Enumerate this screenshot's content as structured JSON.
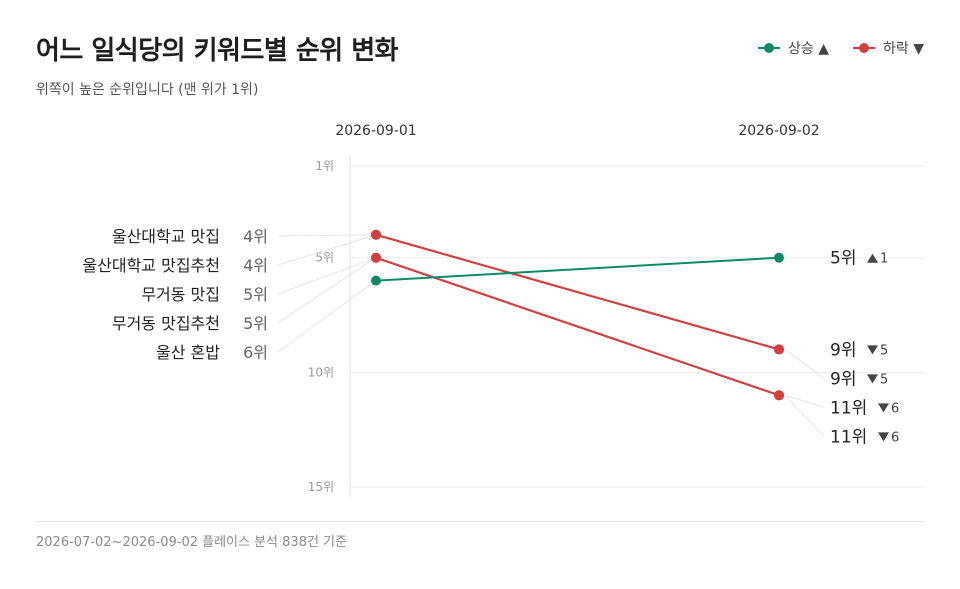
{
  "header": {
    "title": "어느 일식당의 키워드별 순위 변화",
    "subtitle": "위쪽이 높은 순위입니다 (맨 위가 1위)"
  },
  "legend": {
    "up": {
      "label": "상승 ▲",
      "color": "#0e8a6a"
    },
    "down": {
      "label": "하락 ▼",
      "color": "#d13f3f"
    }
  },
  "footer": {
    "note": "2026-07-02~2026-09-02 플레이스 분석 838건 기준"
  },
  "chart_data": {
    "type": "line",
    "chart_kind": "slope",
    "x": [
      "2026-09-01",
      "2026-09-02"
    ],
    "y_axis": {
      "reversed": true,
      "range": [
        1,
        15
      ],
      "ticks": [
        1,
        5,
        10,
        15
      ],
      "tick_suffix": "위"
    },
    "rank_suffix": "위",
    "grid": true,
    "series": [
      {
        "name": "울산대학교 맛집",
        "values": [
          4,
          9
        ],
        "change": 5,
        "direction": "down"
      },
      {
        "name": "울산대학교 맛집추천",
        "values": [
          4,
          9
        ],
        "change": 5,
        "direction": "down"
      },
      {
        "name": "무거동 맛집",
        "values": [
          5,
          11
        ],
        "change": 6,
        "direction": "down"
      },
      {
        "name": "무거동 맛집추천",
        "values": [
          5,
          11
        ],
        "change": 6,
        "direction": "down"
      },
      {
        "name": "울산 혼밥",
        "values": [
          6,
          5
        ],
        "change": 1,
        "direction": "up"
      }
    ]
  }
}
